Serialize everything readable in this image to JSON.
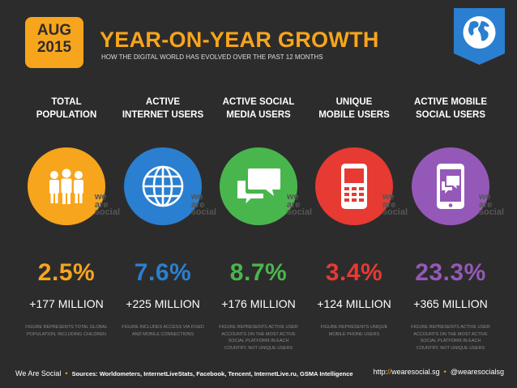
{
  "header": {
    "month": "AUG",
    "year": "2015",
    "title": "YEAR-ON-YEAR GROWTH",
    "subtitle": "HOW THE DIGITAL WORLD HAS EVOLVED OVER THE PAST 12 MONTHS"
  },
  "watermark": {
    "line1": "we",
    "line2": "are",
    "line3": "social"
  },
  "columns": [
    {
      "label_line1": "TOTAL",
      "label_line2": "POPULATION",
      "percent": "2.5%",
      "absolute": "+177 MILLION",
      "note": "FIGURE REPRESENTS TOTAL GLOBAL POPULATION, INCLUDING CHILDREN",
      "color": "#f7a51c",
      "icon": "people-icon"
    },
    {
      "label_line1": "ACTIVE",
      "label_line2": "INTERNET USERS",
      "percent": "7.6%",
      "absolute": "+225 MILLION",
      "note": "FIGURE INCLUDES ACCESS VIA FIXED AND MOBILE CONNECTIONS",
      "color": "#2a7fd0",
      "icon": "globe-icon"
    },
    {
      "label_line1": "ACTIVE SOCIAL",
      "label_line2": "MEDIA USERS",
      "percent": "8.7%",
      "absolute": "+176 MILLION",
      "note": "FIGURE REPRESENTS ACTIVE USER ACCOUNTS ON THE MOST ACTIVE SOCIAL PLATFORM IN EACH COUNTRY, NOT UNIQUE USERS",
      "color": "#49b64d",
      "icon": "speech-bubbles-icon"
    },
    {
      "label_line1": "UNIQUE",
      "label_line2": "MOBILE USERS",
      "percent": "3.4%",
      "absolute": "+124 MILLION",
      "note": "FIGURE REPRESENTS UNIQUE MOBILE PHONE USERS",
      "color": "#e63a33",
      "icon": "mobile-phone-icon"
    },
    {
      "label_line1": "ACTIVE MOBILE",
      "label_line2": "SOCIAL USERS",
      "percent": "23.3%",
      "absolute": "+365 MILLION",
      "note": "FIGURE REPRESENTS ACTIVE USER ACCOUNTS ON THE MOST ACTIVE SOCIAL PLATFORM IN EACH COUNTRY, NOT UNIQUE USERS",
      "color": "#9459b8",
      "icon": "smartphone-chat-icon"
    }
  ],
  "footer": {
    "brand": "We Are Social",
    "sources": "Sources: Worldometers, InternetLiveStats, Facebook, Tencent, InternetLive.ru, GSMA Intelligence",
    "url_prefix": "http://",
    "url_slash": "//",
    "url_host": "wearesocial.sg",
    "handle": "@wearesocialsg"
  }
}
